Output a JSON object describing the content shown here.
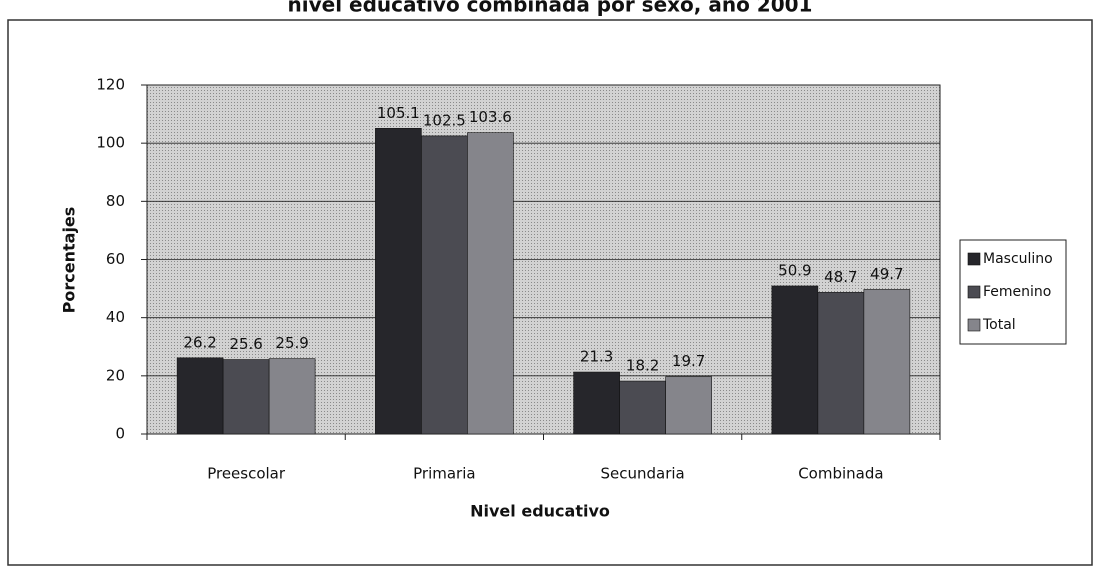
{
  "chart_data": {
    "type": "bar",
    "title": "nivel educativo combinada por sexo, año 2001",
    "x_label": "Nivel educativo",
    "y_label": "Porcentajes",
    "categories": [
      "Preescolar",
      "Primaria",
      "Secundaria",
      "Combinada"
    ],
    "series": [
      {
        "name": "Masculino",
        "color": "#26262b",
        "values": [
          26.2,
          105.1,
          21.3,
          50.9
        ]
      },
      {
        "name": "Femenino",
        "color": "#4b4b52",
        "values": [
          25.6,
          102.5,
          18.2,
          48.7
        ]
      },
      {
        "name": "Total",
        "color": "#85858b",
        "values": [
          25.9,
          103.6,
          19.7,
          49.7
        ]
      }
    ],
    "ylim": [
      0,
      120
    ],
    "yticks": [
      0,
      20,
      40,
      60,
      80,
      100,
      120
    ],
    "grid": true,
    "legend": "right"
  }
}
